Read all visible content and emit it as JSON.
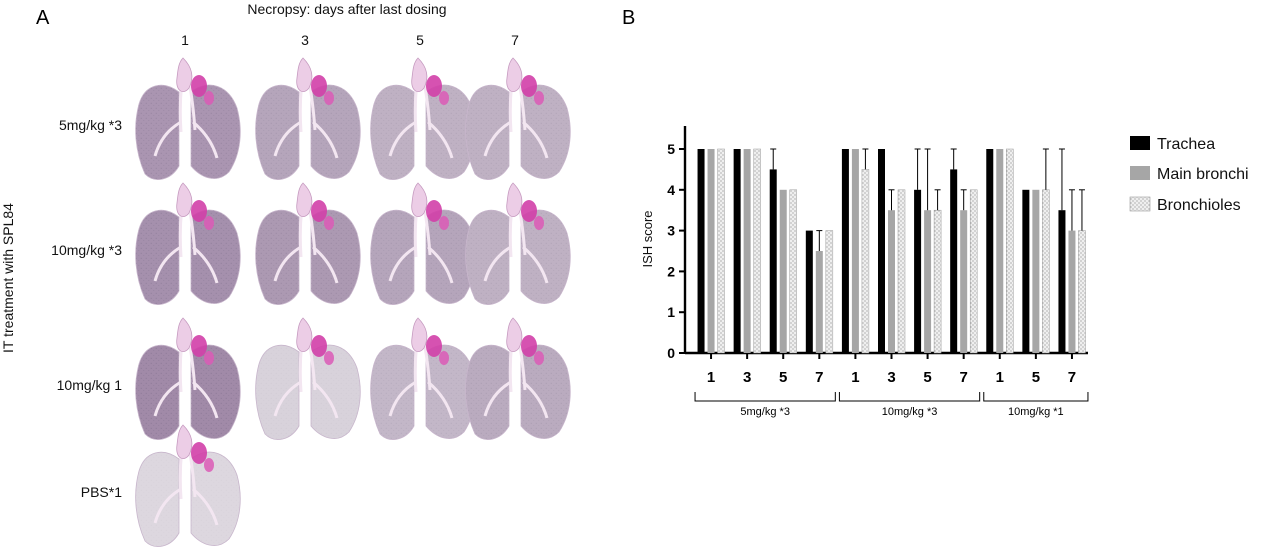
{
  "panel_a": {
    "letter": "A",
    "header": "Necropsy: days after last dosing",
    "side_label": "IT treatment with SPL84",
    "columns": [
      "1",
      "3",
      "5",
      "7"
    ],
    "rows": [
      {
        "label": "5mg/kg *3",
        "n": 4,
        "intensity": [
          0.75,
          0.6,
          0.5,
          0.5
        ]
      },
      {
        "label": "10mg/kg *3",
        "n": 4,
        "intensity": [
          0.8,
          0.7,
          0.6,
          0.5
        ]
      },
      {
        "label": "10mg/kg 1",
        "n": 4,
        "intensity": [
          0.85,
          0.2,
          0.45,
          0.55
        ]
      },
      {
        "label": "PBS*1",
        "n": 1,
        "intensity": [
          0.15
        ]
      }
    ]
  },
  "panel_b": {
    "letter": "B",
    "legend": [
      {
        "name": "Trachea",
        "color": "#000000",
        "pattern": "solid"
      },
      {
        "name": "Main bronchi",
        "color": "#a6a6a6",
        "pattern": "solid"
      },
      {
        "name": "Bronchioles",
        "color": "#ececec",
        "pattern": "dotted"
      }
    ]
  },
  "chart_data": {
    "type": "bar",
    "title": "",
    "ylabel": "ISH score",
    "xlabel": "",
    "ylim": [
      0,
      5
    ],
    "yticks": [
      "0",
      "1",
      "2",
      "3",
      "4",
      "5"
    ],
    "legend_position": "right",
    "categories": [
      "1",
      "3",
      "5",
      "7",
      "1",
      "3",
      "5",
      "7",
      "1",
      "5",
      "7"
    ],
    "groups": [
      {
        "label": "5mg/kg *3",
        "from": 0,
        "to": 3
      },
      {
        "label": "10mg/kg *3",
        "from": 4,
        "to": 7
      },
      {
        "label": "10mg/kg *1",
        "from": 8,
        "to": 10
      }
    ],
    "series": [
      {
        "name": "Trachea",
        "values": [
          5,
          5,
          4.5,
          3,
          5,
          5,
          4,
          4.5,
          5,
          4,
          3.5
        ],
        "error": [
          0,
          0,
          0.5,
          0,
          0,
          0,
          1,
          0.5,
          0,
          0,
          1.5
        ]
      },
      {
        "name": "Main bronchi",
        "values": [
          5,
          5,
          4,
          2.5,
          5,
          3.5,
          3.5,
          3.5,
          5,
          4,
          3
        ],
        "error": [
          0,
          0,
          0,
          0.5,
          0,
          0.5,
          1.5,
          0.5,
          0,
          0,
          1
        ]
      },
      {
        "name": "Bronchioles",
        "values": [
          5,
          5,
          4,
          3,
          4.5,
          4,
          3.5,
          4,
          5,
          4,
          3
        ],
        "error": [
          0,
          0,
          0,
          0,
          0.5,
          0,
          0.5,
          0,
          0,
          1,
          1
        ]
      }
    ]
  }
}
